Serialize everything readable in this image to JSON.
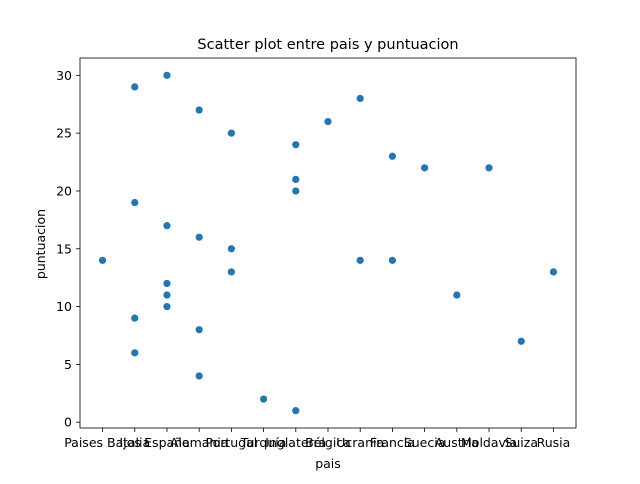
{
  "chart_data": {
    "type": "scatter",
    "title": "Scatter plot entre pais y puntuacion",
    "xlabel": "pais",
    "ylabel": "puntuacion",
    "categories": [
      "Paises Bajos",
      "Italia",
      "España",
      "Alemania",
      "Portugal",
      "Turquía",
      "Inglaterra",
      "Bélgica",
      "Ucrania",
      "Francia",
      "Suecia",
      "Austria",
      "Moldavia",
      "Suiza",
      "Rusia"
    ],
    "yticks": [
      0,
      5,
      10,
      15,
      20,
      25,
      30
    ],
    "ylim": [
      -0.5,
      31.5
    ],
    "grid": false,
    "marker_color": "#1f77b4",
    "points": [
      {
        "x": "Paises Bajos",
        "y": 14
      },
      {
        "x": "Italia",
        "y": 29
      },
      {
        "x": "Italia",
        "y": 19
      },
      {
        "x": "Italia",
        "y": 9
      },
      {
        "x": "Italia",
        "y": 6
      },
      {
        "x": "España",
        "y": 30
      },
      {
        "x": "España",
        "y": 17
      },
      {
        "x": "España",
        "y": 12
      },
      {
        "x": "España",
        "y": 11
      },
      {
        "x": "España",
        "y": 10
      },
      {
        "x": "Alemania",
        "y": 27
      },
      {
        "x": "Alemania",
        "y": 16
      },
      {
        "x": "Alemania",
        "y": 8
      },
      {
        "x": "Alemania",
        "y": 4
      },
      {
        "x": "Portugal",
        "y": 25
      },
      {
        "x": "Portugal",
        "y": 15
      },
      {
        "x": "Portugal",
        "y": 13
      },
      {
        "x": "Turquía",
        "y": 2
      },
      {
        "x": "Inglaterra",
        "y": 24
      },
      {
        "x": "Inglaterra",
        "y": 21
      },
      {
        "x": "Inglaterra",
        "y": 20
      },
      {
        "x": "Inglaterra",
        "y": 1
      },
      {
        "x": "Bélgica",
        "y": 26
      },
      {
        "x": "Ucrania",
        "y": 28
      },
      {
        "x": "Ucrania",
        "y": 14
      },
      {
        "x": "Francia",
        "y": 23
      },
      {
        "x": "Francia",
        "y": 14
      },
      {
        "x": "Suecia",
        "y": 22
      },
      {
        "x": "Austria",
        "y": 11
      },
      {
        "x": "Moldavia",
        "y": 22
      },
      {
        "x": "Suiza",
        "y": 7
      },
      {
        "x": "Rusia",
        "y": 13
      }
    ]
  }
}
